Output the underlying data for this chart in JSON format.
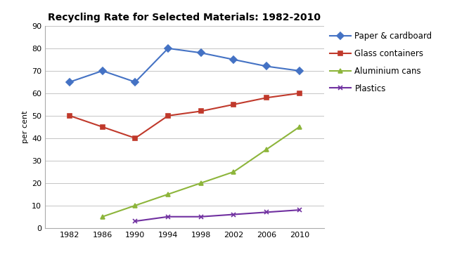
{
  "title": "Recycling Rate for Selected Materials: 1982-2010",
  "ylabel": "per cent",
  "years": [
    1982,
    1986,
    1990,
    1994,
    1998,
    2002,
    2006,
    2010
  ],
  "series": [
    {
      "label": "Paper & cardboard",
      "values": [
        65,
        70,
        65,
        80,
        78,
        75,
        72,
        70
      ],
      "color": "#4472C4",
      "marker": "D",
      "markersize": 5,
      "linewidth": 1.5
    },
    {
      "label": "Glass containers",
      "values": [
        50,
        45,
        40,
        50,
        52,
        55,
        58,
        60
      ],
      "color": "#C0392B",
      "marker": "s",
      "markersize": 5,
      "linewidth": 1.5
    },
    {
      "label": "Aluminium cans",
      "values": [
        null,
        5,
        10,
        15,
        20,
        25,
        35,
        45
      ],
      "color": "#8DB53B",
      "marker": "^",
      "markersize": 5,
      "linewidth": 1.5
    },
    {
      "label": "Plastics",
      "values": [
        null,
        null,
        3,
        5,
        5,
        6,
        7,
        8
      ],
      "color": "#7030A0",
      "marker": "x",
      "markersize": 5,
      "linewidth": 1.5
    }
  ],
  "ylim": [
    0,
    90
  ],
  "yticks": [
    0,
    10,
    20,
    30,
    40,
    50,
    60,
    70,
    80,
    90
  ],
  "xticks": [
    1982,
    1986,
    1990,
    1994,
    1998,
    2002,
    2006,
    2010
  ],
  "xlim": [
    1979,
    2013
  ],
  "grid_color": "#BBBBBB",
  "background_color": "#FFFFFF",
  "title_fontsize": 10,
  "axis_fontsize": 8,
  "tick_fontsize": 8,
  "legend_fontsize": 8.5
}
